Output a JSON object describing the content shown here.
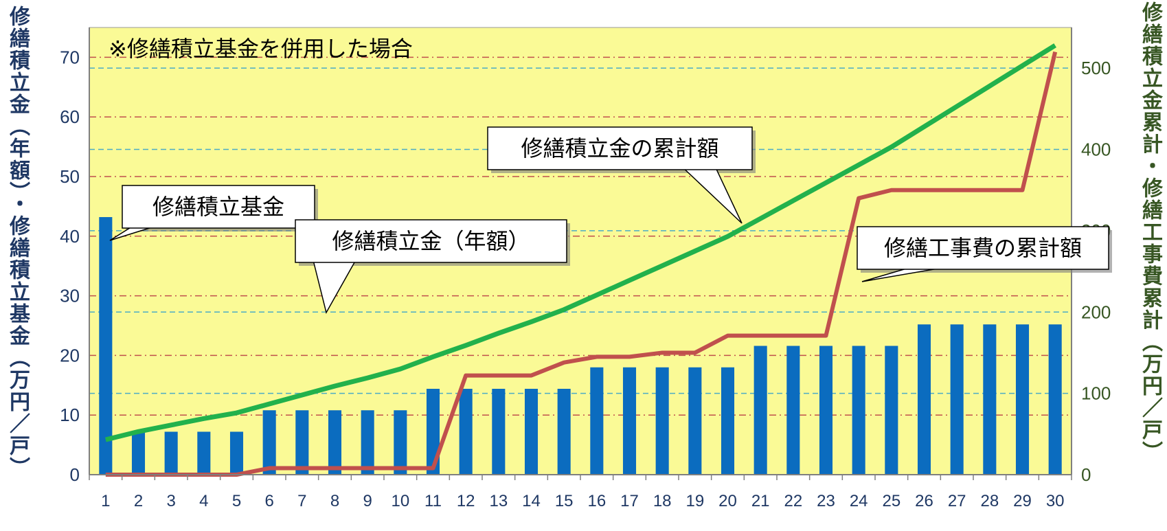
{
  "chart_data": {
    "type": "bar+line",
    "note": "※修繕積立基金を併用した場合",
    "x": [
      1,
      2,
      3,
      4,
      5,
      6,
      7,
      8,
      9,
      10,
      11,
      12,
      13,
      14,
      15,
      16,
      17,
      18,
      19,
      20,
      21,
      22,
      23,
      24,
      25,
      26,
      27,
      28,
      29,
      30
    ],
    "xtick_labels": [
      "1",
      "2",
      "3",
      "4",
      "5",
      "6",
      "7",
      "8",
      "9",
      "10",
      "11",
      "12",
      "13",
      "14",
      "15",
      "16",
      "17",
      "18",
      "19",
      "20",
      "21",
      "22",
      "23",
      "24",
      "25",
      "26",
      "27",
      "28",
      "29",
      "30"
    ],
    "left_axis": {
      "label": "修繕積立金（年額）・修繕積立基金（万円／戸）",
      "ylim": [
        0,
        75
      ],
      "ticks": [
        0,
        10,
        20,
        30,
        40,
        50,
        60,
        70
      ],
      "color": "#1f3864"
    },
    "right_axis": {
      "label": "修繕積立金累計・修繕工事費累計（万円／戸）",
      "ylim": [
        0,
        550
      ],
      "ticks": [
        0,
        100,
        200,
        300,
        400,
        500
      ],
      "color": "#375623"
    },
    "series": [
      {
        "name": "修繕積立基金",
        "kind": "bar",
        "axis": "left",
        "color": "#0b6cbf",
        "values": [
          43.2,
          0,
          0,
          0,
          0,
          0,
          0,
          0,
          0,
          0,
          0,
          0,
          0,
          0,
          0,
          0,
          0,
          0,
          0,
          0,
          0,
          0,
          0,
          0,
          0,
          0,
          0,
          0,
          0,
          0
        ]
      },
      {
        "name": "修繕積立金（年額）",
        "kind": "bar",
        "axis": "left",
        "color": "#0b6cbf",
        "values": [
          0,
          7.2,
          7.2,
          7.2,
          7.2,
          10.8,
          10.8,
          10.8,
          10.8,
          10.8,
          14.4,
          14.4,
          14.4,
          14.4,
          14.4,
          18,
          18,
          18,
          18,
          18,
          21.6,
          21.6,
          21.6,
          21.6,
          21.6,
          25.2,
          25.2,
          25.2,
          25.2,
          25.2
        ]
      },
      {
        "name": "修繕積立金の累計額",
        "kind": "line",
        "axis": "right",
        "color": "#22b14c",
        "values": [
          43,
          53,
          61,
          69,
          76,
          87,
          98,
          109,
          119,
          130,
          145,
          159,
          174,
          188,
          203,
          221,
          239,
          257,
          275,
          293,
          315,
          337,
          359,
          381,
          403,
          428,
          453,
          478,
          503,
          528
        ]
      },
      {
        "name": "修繕工事費の累計額",
        "kind": "line",
        "axis": "right",
        "color": "#c0504d",
        "values": [
          0,
          0,
          0,
          0,
          0,
          8,
          8,
          8,
          8,
          8,
          8,
          122,
          122,
          122,
          138,
          145,
          145,
          150,
          150,
          171,
          171,
          171,
          171,
          340,
          350,
          350,
          350,
          350,
          350,
          520
        ]
      }
    ],
    "grid": true,
    "background": "#fafa96"
  }
}
